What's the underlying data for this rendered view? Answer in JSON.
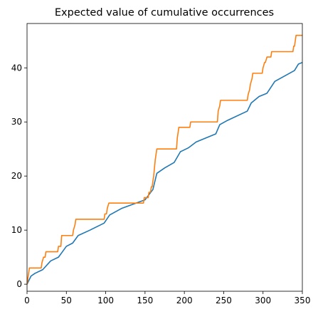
{
  "chart_data": {
    "type": "line",
    "title": "Expected value of cumulative occurrences",
    "xlim": [
      0,
      350
    ],
    "ylim": [
      -1.3,
      48.2
    ],
    "xticks": [
      0,
      50,
      100,
      150,
      200,
      250,
      300,
      350
    ],
    "yticks": [
      0,
      10,
      20,
      30,
      40
    ],
    "series": [
      {
        "color": "#1f77b4",
        "x": [
          0,
          5,
          10,
          20,
          30,
          40,
          45,
          50,
          58,
          65,
          80,
          98,
          105,
          120,
          150,
          160,
          165,
          175,
          187,
          195,
          205,
          215,
          240,
          245,
          255,
          280,
          285,
          295,
          305,
          315,
          340,
          345,
          350
        ],
        "values": [
          0,
          1.5,
          2,
          2.7,
          4.3,
          5,
          6,
          7,
          7.6,
          9,
          10,
          11.3,
          12.8,
          14,
          15.6,
          17.5,
          20.5,
          21.5,
          22.5,
          24.5,
          25.2,
          26.3,
          27.8,
          29.5,
          30.3,
          32,
          33.5,
          34.7,
          35.3,
          37.5,
          39.5,
          40.7,
          41
        ]
      },
      {
        "color": "#ff7f0e",
        "x": [
          0,
          2,
          3,
          18,
          19,
          21,
          23,
          24,
          39,
          40,
          43,
          44,
          58,
          59,
          61,
          62,
          98,
          99,
          101,
          102,
          104,
          148,
          149,
          150,
          154,
          155,
          157,
          158,
          159,
          161,
          163,
          165,
          190,
          191,
          192,
          193,
          207,
          208,
          242,
          243,
          245,
          246,
          280,
          281,
          283,
          284,
          286,
          287,
          299,
          300,
          302,
          303,
          305,
          310,
          311,
          338,
          339,
          340,
          341,
          342,
          350
        ],
        "values": [
          0,
          2,
          3,
          3,
          4,
          5,
          5,
          6,
          6,
          7,
          7,
          9,
          9,
          10,
          11,
          12,
          12,
          13,
          13,
          14,
          15,
          15,
          16,
          16,
          16,
          17,
          17,
          18,
          18,
          20,
          23,
          25,
          25,
          27,
          28,
          29,
          29,
          30,
          30,
          32,
          33,
          34,
          34,
          35,
          36,
          37,
          38,
          39,
          39,
          40,
          41,
          41,
          42,
          42,
          43,
          43,
          44,
          44,
          45,
          46,
          46
        ]
      }
    ]
  }
}
